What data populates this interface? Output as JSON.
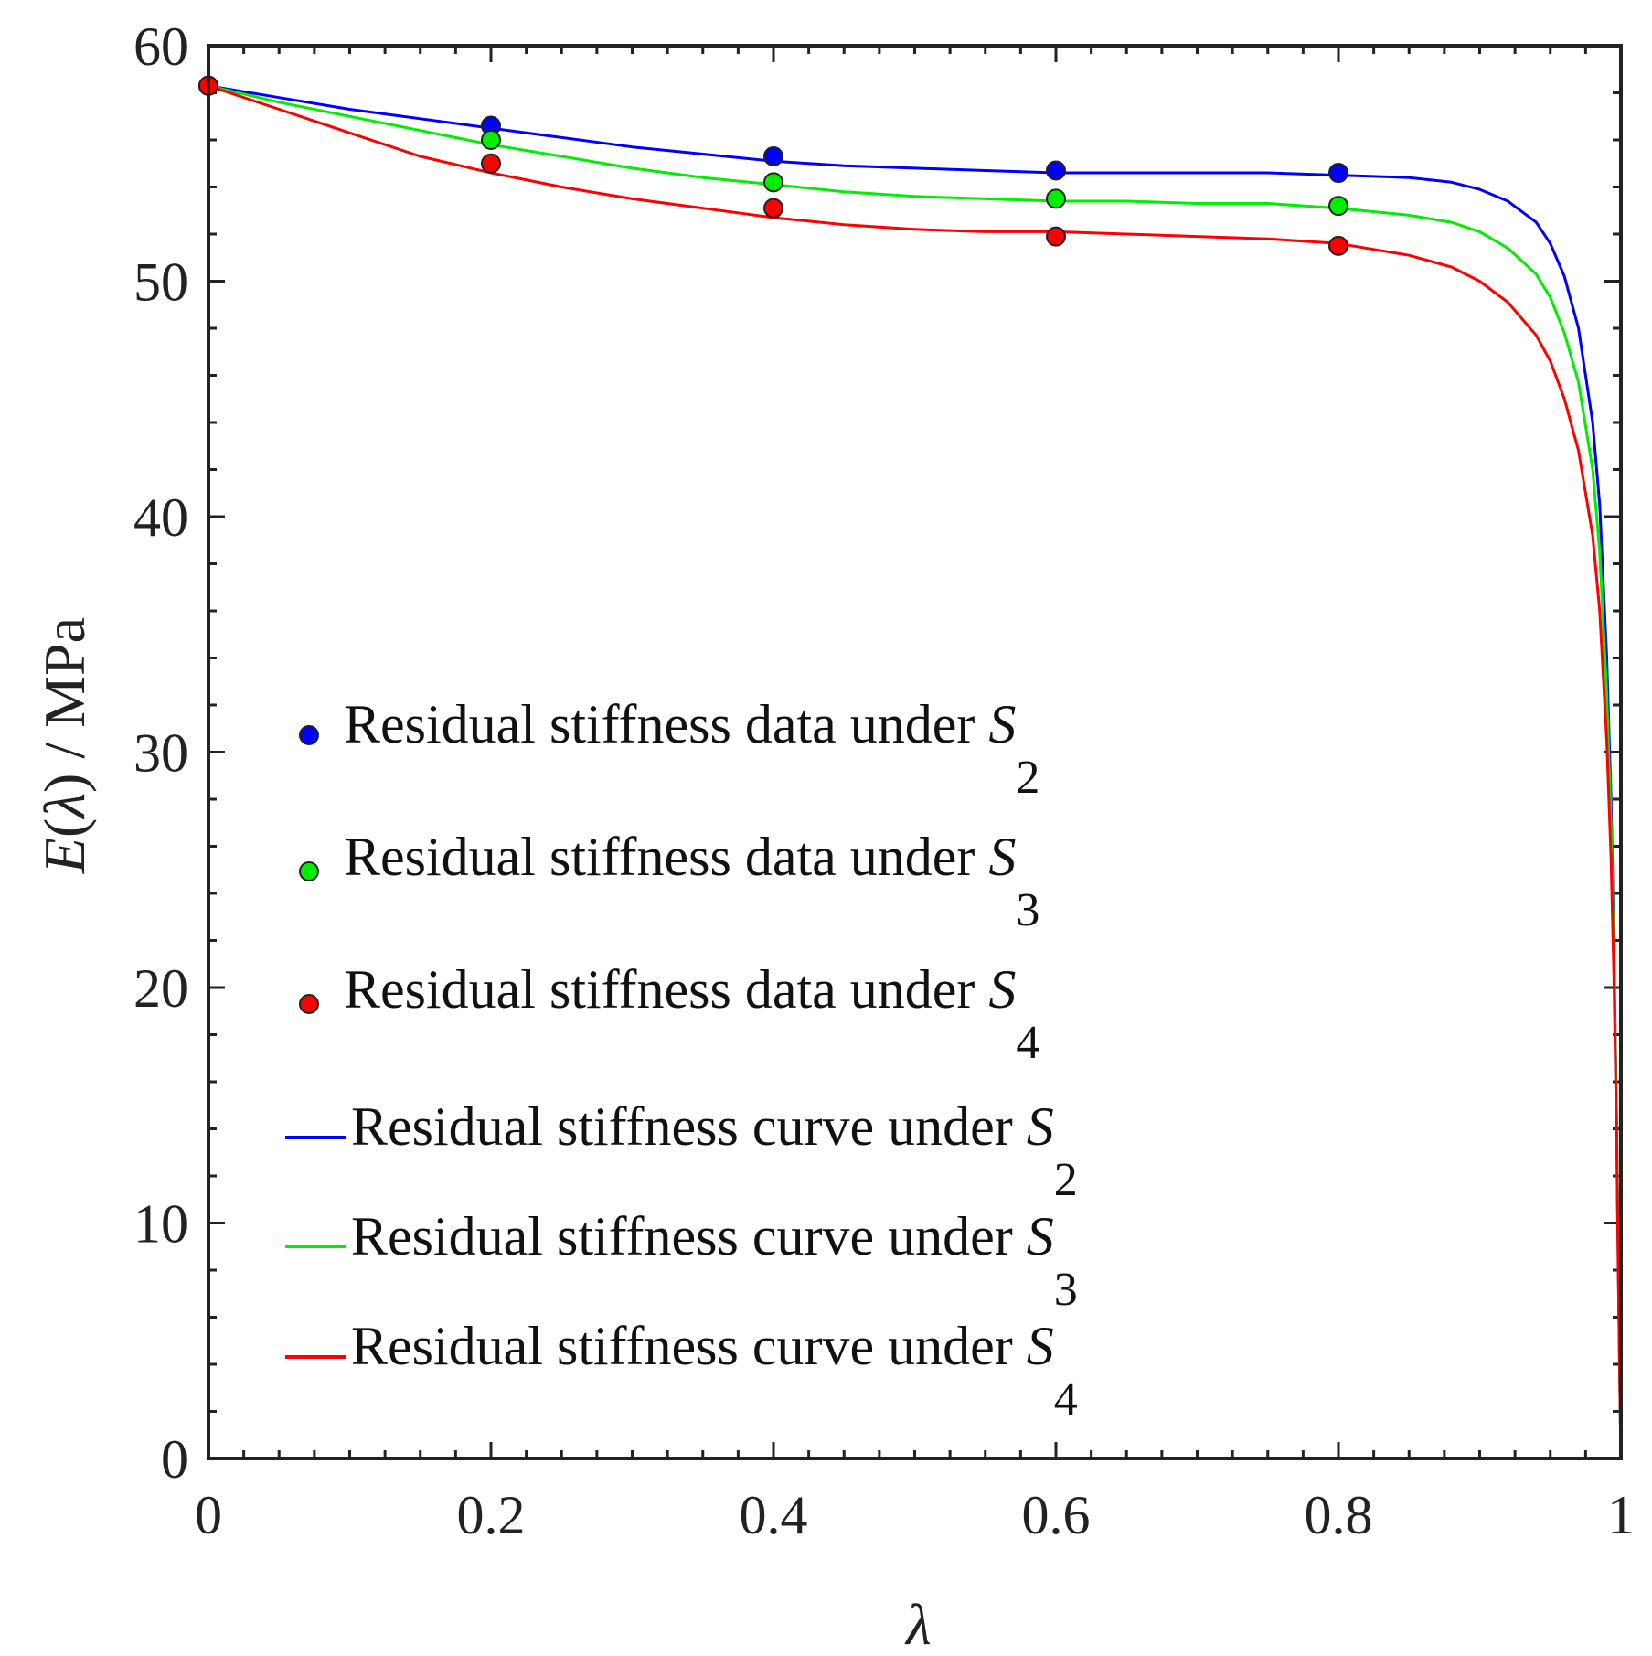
{
  "chart_data": {
    "type": "line",
    "title": "",
    "xlabel": "λ",
    "ylabel": {
      "italic": "E",
      "open": "(",
      "lambda": "λ",
      "rest": ") / MPa"
    },
    "xlim": [
      0,
      1
    ],
    "ylim": [
      0,
      60
    ],
    "xticks": [
      0,
      0.2,
      0.4,
      0.6,
      0.8,
      1
    ],
    "xtick_labels": [
      "0",
      "0.2",
      "0.4",
      "0.6",
      "0.8",
      "1"
    ],
    "yticks": [
      0,
      10,
      20,
      30,
      40,
      50,
      60
    ],
    "ytick_labels": [
      "0",
      "10",
      "20",
      "30",
      "40",
      "50",
      "60"
    ],
    "grid": false,
    "legend_position": "center-left",
    "points": [
      {
        "name": "Residual stiffness data under S2",
        "legend_text": "Residual stiffness data under ",
        "symbol": "S",
        "subscript": "2",
        "color": "#0000ff",
        "x": [
          0,
          0.2,
          0.4,
          0.6,
          0.8
        ],
        "y": [
          58.3,
          56.6,
          55.3,
          54.7,
          54.6
        ]
      },
      {
        "name": "Residual stiffness data under S3",
        "legend_text": "Residual stiffness data under ",
        "symbol": "S",
        "subscript": "3",
        "color": "#00ee00",
        "x": [
          0,
          0.2,
          0.4,
          0.6,
          0.8
        ],
        "y": [
          58.3,
          56.0,
          54.2,
          53.5,
          53.2
        ]
      },
      {
        "name": "Residual stiffness data under S4",
        "legend_text": "Residual stiffness data under ",
        "symbol": "S",
        "subscript": "4",
        "color": "#ff0000",
        "x": [
          0,
          0.2,
          0.4,
          0.6,
          0.8
        ],
        "y": [
          58.3,
          55.0,
          53.1,
          51.9,
          51.5
        ]
      }
    ],
    "series": [
      {
        "name": "Residual stiffness curve under S2",
        "legend_text": "Residual stiffness curve under ",
        "symbol": "S",
        "subscript": "2",
        "color": "#0000ff",
        "x": [
          0,
          0.05,
          0.1,
          0.15,
          0.2,
          0.25,
          0.3,
          0.35,
          0.4,
          0.45,
          0.5,
          0.55,
          0.6,
          0.65,
          0.7,
          0.75,
          0.8,
          0.85,
          0.88,
          0.9,
          0.92,
          0.94,
          0.95,
          0.96,
          0.97,
          0.98,
          0.985,
          0.99,
          0.993,
          0.995,
          0.997,
          0.998,
          0.999,
          1
        ],
        "y": [
          58.3,
          57.8,
          57.3,
          56.9,
          56.5,
          56.1,
          55.7,
          55.4,
          55.1,
          54.9,
          54.8,
          54.7,
          54.6,
          54.6,
          54.6,
          54.6,
          54.5,
          54.4,
          54.2,
          53.9,
          53.4,
          52.5,
          51.6,
          50.2,
          48.0,
          44.0,
          40.5,
          34.0,
          28.0,
          22.0,
          14.0,
          9.0,
          4.0,
          0
        ]
      },
      {
        "name": "Residual stiffness curve under S3",
        "legend_text": "Residual stiffness curve under ",
        "symbol": "S",
        "subscript": "3",
        "color": "#00ee00",
        "x": [
          0,
          0.05,
          0.1,
          0.15,
          0.2,
          0.25,
          0.3,
          0.35,
          0.4,
          0.45,
          0.5,
          0.55,
          0.6,
          0.65,
          0.7,
          0.75,
          0.8,
          0.85,
          0.88,
          0.9,
          0.92,
          0.94,
          0.95,
          0.96,
          0.97,
          0.98,
          0.985,
          0.99,
          0.993,
          0.995,
          0.997,
          0.998,
          0.999,
          1
        ],
        "y": [
          58.3,
          57.6,
          57.0,
          56.4,
          55.8,
          55.3,
          54.8,
          54.4,
          54.1,
          53.8,
          53.6,
          53.5,
          53.4,
          53.4,
          53.3,
          53.3,
          53.1,
          52.8,
          52.5,
          52.1,
          51.4,
          50.3,
          49.3,
          47.8,
          45.7,
          42.0,
          38.5,
          32.5,
          27.0,
          21.5,
          14.0,
          9.0,
          4.0,
          0
        ]
      },
      {
        "name": "Residual stiffness curve under S4",
        "legend_text": "Residual stiffness curve under ",
        "symbol": "S",
        "subscript": "4",
        "color": "#ff0000",
        "x": [
          0,
          0.05,
          0.1,
          0.15,
          0.2,
          0.25,
          0.3,
          0.35,
          0.4,
          0.45,
          0.5,
          0.55,
          0.6,
          0.65,
          0.7,
          0.75,
          0.8,
          0.85,
          0.88,
          0.9,
          0.92,
          0.94,
          0.95,
          0.96,
          0.97,
          0.98,
          0.985,
          0.99,
          0.993,
          0.995,
          0.997,
          0.998,
          0.999,
          1
        ],
        "y": [
          58.3,
          57.3,
          56.3,
          55.3,
          54.6,
          54.0,
          53.5,
          53.1,
          52.7,
          52.4,
          52.2,
          52.1,
          52.1,
          52.0,
          51.9,
          51.8,
          51.6,
          51.1,
          50.6,
          50.0,
          49.1,
          47.7,
          46.6,
          45.0,
          42.8,
          39.2,
          36.0,
          30.5,
          25.5,
          20.5,
          13.5,
          8.5,
          4.0,
          0
        ]
      }
    ]
  }
}
